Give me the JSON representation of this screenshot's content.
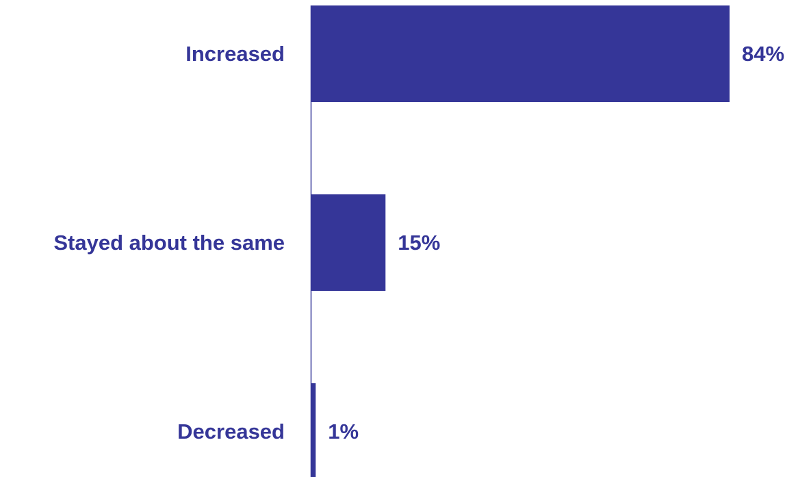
{
  "chart_data": {
    "type": "bar",
    "orientation": "horizontal",
    "categories": [
      "Increased",
      "Stayed about the same",
      "Decreased"
    ],
    "values": [
      84,
      15,
      1
    ],
    "value_labels": [
      "84%",
      "15%",
      "1%"
    ],
    "unit": "%",
    "xlim": [
      0,
      84
    ],
    "grid": false,
    "legend": "none"
  },
  "colors": {
    "bar": "#353698",
    "text": "#353698",
    "background": "#ffffff"
  }
}
